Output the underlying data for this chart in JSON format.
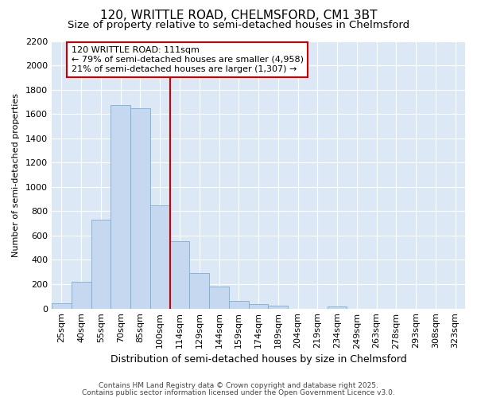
{
  "title1": "120, WRITTLE ROAD, CHELMSFORD, CM1 3BT",
  "title2": "Size of property relative to semi-detached houses in Chelmsford",
  "xlabel": "Distribution of semi-detached houses by size in Chelmsford",
  "ylabel": "Number of semi-detached properties",
  "bar_labels": [
    "25sqm",
    "40sqm",
    "55sqm",
    "70sqm",
    "85sqm",
    "100sqm",
    "114sqm",
    "129sqm",
    "144sqm",
    "159sqm",
    "174sqm",
    "189sqm",
    "204sqm",
    "219sqm",
    "234sqm",
    "249sqm",
    "263sqm",
    "278sqm",
    "293sqm",
    "308sqm",
    "323sqm"
  ],
  "bar_values": [
    40,
    220,
    730,
    1670,
    1650,
    845,
    555,
    295,
    180,
    65,
    35,
    25,
    0,
    0,
    15,
    0,
    0,
    0,
    0,
    0,
    0
  ],
  "bar_color": "#c5d8f0",
  "bar_edge_color": "#7aafd4",
  "vline_color": "#cc0000",
  "annotation_title": "120 WRITTLE ROAD: 111sqm",
  "annotation_line2": "← 79% of semi-detached houses are smaller (4,958)",
  "annotation_line3": "21% of semi-detached houses are larger (1,307) →",
  "annotation_box_color": "#cc0000",
  "ylim": [
    0,
    2200
  ],
  "yticks": [
    0,
    200,
    400,
    600,
    800,
    1000,
    1200,
    1400,
    1600,
    1800,
    2000,
    2200
  ],
  "fig_bg_color": "#ffffff",
  "plot_bg_color": "#dce8f5",
  "grid_color": "#ffffff",
  "footer1": "Contains HM Land Registry data © Crown copyright and database right 2025.",
  "footer2": "Contains public sector information licensed under the Open Government Licence v3.0.",
  "title1_fontsize": 11,
  "title2_fontsize": 9.5,
  "xlabel_fontsize": 9,
  "ylabel_fontsize": 8,
  "tick_fontsize": 8,
  "annotation_fontsize": 8,
  "footer_fontsize": 6.5
}
